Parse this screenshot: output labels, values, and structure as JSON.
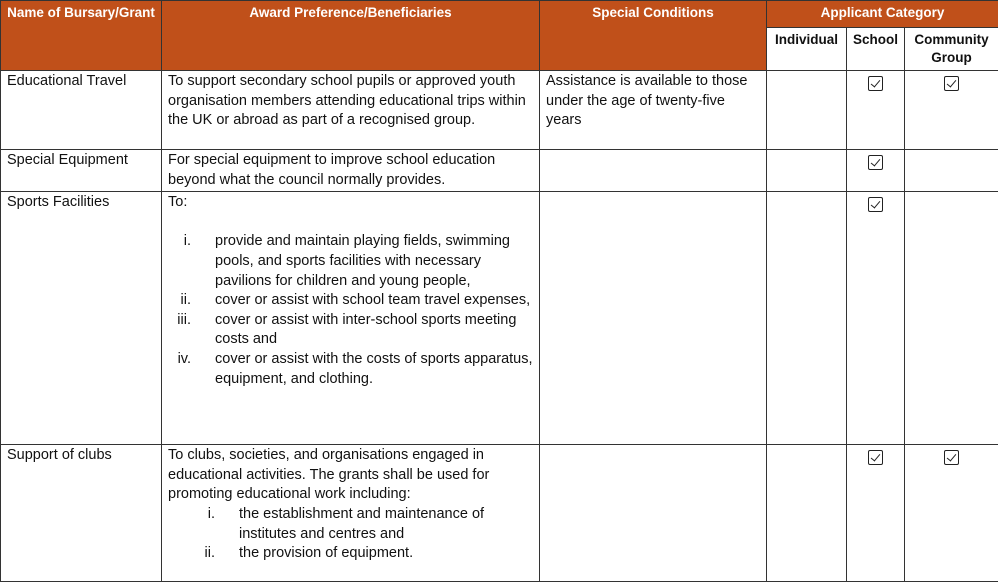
{
  "headers": {
    "name": "Name of Bursary/Grant",
    "award": "Award Preference/Beneficiaries",
    "conditions": "Special Conditions",
    "category": "Applicant Category",
    "individual": "Individual",
    "school": "School",
    "community": "Community Group"
  },
  "rows": [
    {
      "name": "Educational Travel",
      "award": "To support secondary school pupils or approved youth organisation members attending educational trips within the UK or abroad as part of a recognised group.",
      "conditions": "Assistance is available to those under the age of twenty-five years",
      "individual": false,
      "school": true,
      "community": true
    },
    {
      "name": "Special Equipment",
      "award": "For special equipment to improve school education beyond what the council normally provides.",
      "conditions": "",
      "individual": false,
      "school": true,
      "community": false
    },
    {
      "name": "Sports Facilities",
      "award_intro": "To:",
      "award_items": [
        {
          "num": "i.",
          "text": "provide and maintain playing fields, swimming pools, and sports facilities with necessary pavilions for children and young people,"
        },
        {
          "num": "ii.",
          "text": "cover or assist with school team travel expenses,"
        },
        {
          "num": "iii.",
          "text": "cover or assist with inter-school sports meeting costs and"
        },
        {
          "num": "iv.",
          "text": "cover or assist with the costs of sports apparatus, equipment, and clothing."
        }
      ],
      "conditions": "",
      "individual": false,
      "school": true,
      "community": false
    },
    {
      "name": "Support of clubs",
      "award_intro": "To clubs, societies, and organisations engaged in educational activities. The grants shall be used for promoting educational work including:",
      "award_items": [
        {
          "num": "i.",
          "text": "the establishment and maintenance of institutes and centres and"
        },
        {
          "num": "ii.",
          "text": "the provision of equipment."
        }
      ],
      "conditions": "",
      "individual": false,
      "school": true,
      "community": true
    }
  ],
  "colors": {
    "header_bg": "#C0501A",
    "header_text": "#FFFFFF"
  },
  "icons": {
    "checked": "checkbox-checked-icon"
  }
}
